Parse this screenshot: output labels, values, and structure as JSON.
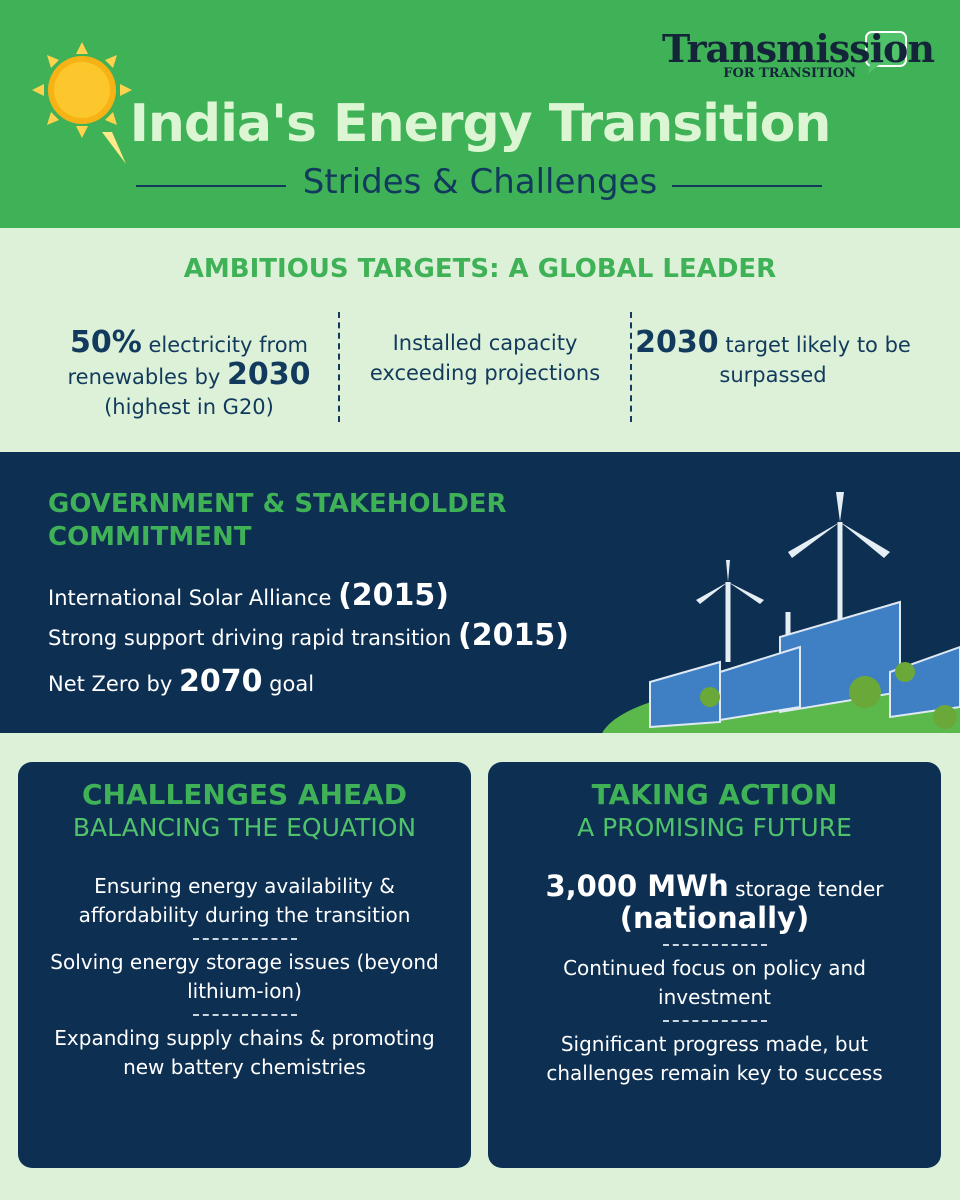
{
  "header": {
    "brand": "Transmission",
    "brand_tagline": "FOR TRANSITION",
    "title": "India's Energy Transition",
    "subtitle": "Strides & Challenges"
  },
  "targets": {
    "heading": "AMBITIOUS TARGETS: A GLOBAL LEADER",
    "items": [
      {
        "parts": [
          {
            "text": "50%",
            "bold": true
          },
          {
            "text": " electricity from renewables by ",
            "bold": false
          },
          {
            "text": "2030",
            "bold": true
          },
          {
            "text": " (highest in G20)",
            "bold": false
          }
        ]
      },
      {
        "parts": [
          {
            "text": "Installed capacity exceeding projections",
            "bold": false
          }
        ]
      },
      {
        "parts": [
          {
            "text": "2030",
            "bold": true
          },
          {
            "text": " target likely to be surpassed",
            "bold": false
          }
        ]
      }
    ]
  },
  "commitment": {
    "heading": "GOVERNMENT & STAKEHOLDER COMMITMENT",
    "items": [
      {
        "parts": [
          {
            "text": "International Solar Alliance ",
            "bold": false
          },
          {
            "text": "(2015)",
            "bold": true
          }
        ]
      },
      {
        "parts": [
          {
            "text": "Strong support driving rapid transition ",
            "bold": false
          },
          {
            "text": "(2015)",
            "bold": true
          }
        ]
      },
      {
        "parts": [
          {
            "text": "Net Zero by ",
            "bold": false
          },
          {
            "text": "2070",
            "bold": true
          },
          {
            "text": " goal",
            "bold": false
          }
        ]
      }
    ]
  },
  "cards": [
    {
      "title": "CHALLENGES AHEAD",
      "subtitle": "BALANCING THE EQUATION",
      "items": [
        {
          "parts": [
            {
              "text": "Ensuring energy availability & affordability during the transition",
              "bold": false
            }
          ]
        },
        {
          "parts": [
            {
              "text": "Solving energy storage issues (beyond lithium-ion)",
              "bold": false
            }
          ]
        },
        {
          "parts": [
            {
              "text": "Expanding supply chains & promoting new battery chemistries",
              "bold": false
            }
          ]
        }
      ]
    },
    {
      "title": "TAKING ACTION",
      "subtitle": "A PROMISING FUTURE",
      "items": [
        {
          "parts": [
            {
              "text": "3,000 MWh",
              "bold": true
            },
            {
              "text": " storage tender ",
              "bold": false
            },
            {
              "text": "(nationally)",
              "bold": true
            }
          ]
        },
        {
          "parts": [
            {
              "text": "Continued focus on policy and investment",
              "bold": false
            }
          ]
        },
        {
          "parts": [
            {
              "text": "Significant progress made, but challenges remain key to success",
              "bold": false
            }
          ]
        }
      ]
    }
  ]
}
